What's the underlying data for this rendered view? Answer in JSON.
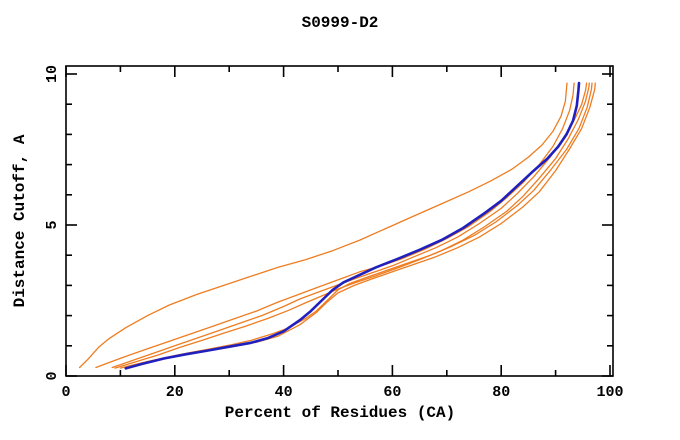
{
  "page": {
    "background": "#ffffff"
  },
  "colors": {
    "frame": "#000000",
    "text": "#000000",
    "orange_curve": "#ee7d21",
    "blue_curve": "#2020bf"
  },
  "chart_data": {
    "type": "line",
    "title": "S0999-D2",
    "xlabel": "Percent of Residues (CA)",
    "ylabel": "Distance Cutoff, A",
    "xlim": [
      0,
      100
    ],
    "ylim": [
      0,
      10
    ],
    "grid": false,
    "legend": "none",
    "frame": "box-with-inward-mirrored-ticks",
    "x_major_ticks": [
      0,
      20,
      40,
      60,
      80,
      100
    ],
    "x_major_tick_labels": [
      "0",
      "20",
      "40",
      "60",
      "80",
      "100"
    ],
    "x_minor_ticks": [
      10,
      30,
      50,
      70,
      90
    ],
    "y_major_ticks": [
      0,
      5,
      10
    ],
    "y_major_tick_labels": [
      "0",
      "5",
      "10"
    ],
    "y_minor_ticks": [
      1,
      2,
      3,
      4,
      6,
      7,
      8,
      9
    ],
    "series": [
      {
        "name": "orange-1",
        "color": "#ee7d21",
        "width": 1.3,
        "points": [
          [
            2.5,
            0.28
          ],
          [
            4,
            0.55
          ],
          [
            6,
            0.95
          ],
          [
            8,
            1.25
          ],
          [
            11,
            1.6
          ],
          [
            15,
            2.0
          ],
          [
            19,
            2.35
          ],
          [
            24,
            2.7
          ],
          [
            29,
            3.0
          ],
          [
            34,
            3.3
          ],
          [
            39,
            3.6
          ],
          [
            44,
            3.85
          ],
          [
            49,
            4.15
          ],
          [
            54,
            4.5
          ],
          [
            59,
            4.9
          ],
          [
            64,
            5.3
          ],
          [
            69,
            5.7
          ],
          [
            74,
            6.1
          ],
          [
            78,
            6.45
          ],
          [
            82,
            6.85
          ],
          [
            85,
            7.25
          ],
          [
            87.5,
            7.65
          ],
          [
            89.5,
            8.1
          ],
          [
            91,
            8.6
          ],
          [
            91.8,
            9.1
          ],
          [
            92.1,
            9.7
          ]
        ]
      },
      {
        "name": "orange-2",
        "color": "#ee7d21",
        "width": 1.3,
        "points": [
          [
            5.5,
            0.28
          ],
          [
            8,
            0.45
          ],
          [
            11,
            0.65
          ],
          [
            15,
            0.9
          ],
          [
            19,
            1.15
          ],
          [
            23,
            1.4
          ],
          [
            27,
            1.65
          ],
          [
            31,
            1.9
          ],
          [
            35,
            2.15
          ],
          [
            39,
            2.45
          ],
          [
            42,
            2.65
          ],
          [
            45,
            2.85
          ],
          [
            48,
            3.05
          ],
          [
            51,
            3.25
          ],
          [
            54,
            3.45
          ],
          [
            58,
            3.65
          ],
          [
            62,
            3.9
          ],
          [
            66,
            4.2
          ],
          [
            70,
            4.55
          ],
          [
            74,
            4.95
          ],
          [
            78,
            5.45
          ],
          [
            81,
            5.9
          ],
          [
            84,
            6.4
          ],
          [
            87,
            7.0
          ],
          [
            89.5,
            7.6
          ],
          [
            91.3,
            8.2
          ],
          [
            92.6,
            8.8
          ],
          [
            93.2,
            9.3
          ],
          [
            93.4,
            9.7
          ]
        ]
      },
      {
        "name": "orange-3",
        "color": "#ee7d21",
        "width": 1.3,
        "points": [
          [
            8.5,
            0.28
          ],
          [
            12,
            0.5
          ],
          [
            16,
            0.75
          ],
          [
            20,
            1.0
          ],
          [
            24,
            1.25
          ],
          [
            28,
            1.5
          ],
          [
            32,
            1.75
          ],
          [
            36,
            2.0
          ],
          [
            40,
            2.3
          ],
          [
            43,
            2.55
          ],
          [
            46,
            2.75
          ],
          [
            49,
            2.95
          ],
          [
            52,
            3.15
          ],
          [
            56,
            3.4
          ],
          [
            60,
            3.65
          ],
          [
            64,
            3.95
          ],
          [
            68,
            4.25
          ],
          [
            72,
            4.6
          ],
          [
            76,
            5.05
          ],
          [
            80,
            5.55
          ],
          [
            83,
            6.05
          ],
          [
            86,
            6.6
          ],
          [
            89,
            7.25
          ],
          [
            91.5,
            7.9
          ],
          [
            93.5,
            8.5
          ],
          [
            94.8,
            9.0
          ],
          [
            95.5,
            9.45
          ],
          [
            95.7,
            9.7
          ]
        ]
      },
      {
        "name": "orange-4",
        "color": "#ee7d21",
        "width": 1.3,
        "points": [
          [
            9,
            0.26
          ],
          [
            13,
            0.48
          ],
          [
            17,
            0.7
          ],
          [
            21,
            0.95
          ],
          [
            25,
            1.18
          ],
          [
            29,
            1.42
          ],
          [
            33,
            1.65
          ],
          [
            37,
            1.9
          ],
          [
            41,
            2.18
          ],
          [
            44,
            2.42
          ],
          [
            47,
            2.65
          ],
          [
            50,
            2.88
          ],
          [
            53,
            3.08
          ],
          [
            57,
            3.32
          ],
          [
            61,
            3.58
          ],
          [
            65,
            3.85
          ],
          [
            69,
            4.15
          ],
          [
            73,
            4.5
          ],
          [
            77,
            4.95
          ],
          [
            81,
            5.45
          ],
          [
            84,
            5.95
          ],
          [
            87,
            6.55
          ],
          [
            90,
            7.2
          ],
          [
            92.3,
            7.85
          ],
          [
            94.2,
            8.5
          ],
          [
            95.5,
            9.1
          ],
          [
            96.1,
            9.55
          ],
          [
            96.2,
            9.7
          ]
        ]
      },
      {
        "name": "orange-5",
        "color": "#ee7d21",
        "width": 1.3,
        "points": [
          [
            10,
            0.26
          ],
          [
            14,
            0.44
          ],
          [
            18,
            0.6
          ],
          [
            22,
            0.75
          ],
          [
            26,
            0.88
          ],
          [
            30,
            1.02
          ],
          [
            34,
            1.18
          ],
          [
            38,
            1.4
          ],
          [
            41,
            1.6
          ],
          [
            44,
            1.9
          ],
          [
            46,
            2.15
          ],
          [
            48,
            2.5
          ],
          [
            50,
            2.85
          ],
          [
            52,
            3.05
          ],
          [
            55,
            3.25
          ],
          [
            59,
            3.5
          ],
          [
            63,
            3.75
          ],
          [
            67,
            4.0
          ],
          [
            71,
            4.3
          ],
          [
            75,
            4.65
          ],
          [
            79,
            5.1
          ],
          [
            83,
            5.65
          ],
          [
            86,
            6.15
          ],
          [
            89,
            6.8
          ],
          [
            92,
            7.5
          ],
          [
            94.3,
            8.2
          ],
          [
            95.8,
            8.9
          ],
          [
            96.6,
            9.5
          ],
          [
            96.7,
            9.7
          ]
        ]
      },
      {
        "name": "orange-6",
        "color": "#ee7d21",
        "width": 1.3,
        "points": [
          [
            10.5,
            0.28
          ],
          [
            15,
            0.48
          ],
          [
            20,
            0.66
          ],
          [
            25,
            0.8
          ],
          [
            30,
            0.95
          ],
          [
            35,
            1.12
          ],
          [
            39,
            1.32
          ],
          [
            43,
            1.7
          ],
          [
            46,
            2.1
          ],
          [
            48,
            2.45
          ],
          [
            50,
            2.75
          ],
          [
            53,
            3.0
          ],
          [
            56,
            3.2
          ],
          [
            60,
            3.45
          ],
          [
            64,
            3.7
          ],
          [
            68,
            3.95
          ],
          [
            72,
            4.25
          ],
          [
            76,
            4.6
          ],
          [
            80,
            5.05
          ],
          [
            84,
            5.6
          ],
          [
            87,
            6.1
          ],
          [
            90,
            6.8
          ],
          [
            92.5,
            7.5
          ],
          [
            94.8,
            8.2
          ],
          [
            96.3,
            8.9
          ],
          [
            97.2,
            9.5
          ],
          [
            97.3,
            9.7
          ]
        ]
      },
      {
        "name": "blue-highlight",
        "color": "#2020bf",
        "width": 2.6,
        "points": [
          [
            11,
            0.25
          ],
          [
            14,
            0.4
          ],
          [
            18,
            0.58
          ],
          [
            22,
            0.72
          ],
          [
            26,
            0.84
          ],
          [
            30,
            0.97
          ],
          [
            34,
            1.1
          ],
          [
            37,
            1.25
          ],
          [
            40,
            1.48
          ],
          [
            43,
            1.85
          ],
          [
            45,
            2.15
          ],
          [
            47,
            2.5
          ],
          [
            49,
            2.85
          ],
          [
            51,
            3.1
          ],
          [
            54,
            3.35
          ],
          [
            57,
            3.6
          ],
          [
            61,
            3.88
          ],
          [
            65,
            4.18
          ],
          [
            69,
            4.5
          ],
          [
            73,
            4.9
          ],
          [
            77,
            5.4
          ],
          [
            80,
            5.8
          ],
          [
            83,
            6.3
          ],
          [
            86,
            6.8
          ],
          [
            88.5,
            7.2
          ],
          [
            90.5,
            7.6
          ],
          [
            92,
            8.0
          ],
          [
            93.2,
            8.45
          ],
          [
            93.9,
            8.95
          ],
          [
            94.2,
            9.45
          ],
          [
            94.3,
            9.7
          ]
        ]
      }
    ]
  }
}
